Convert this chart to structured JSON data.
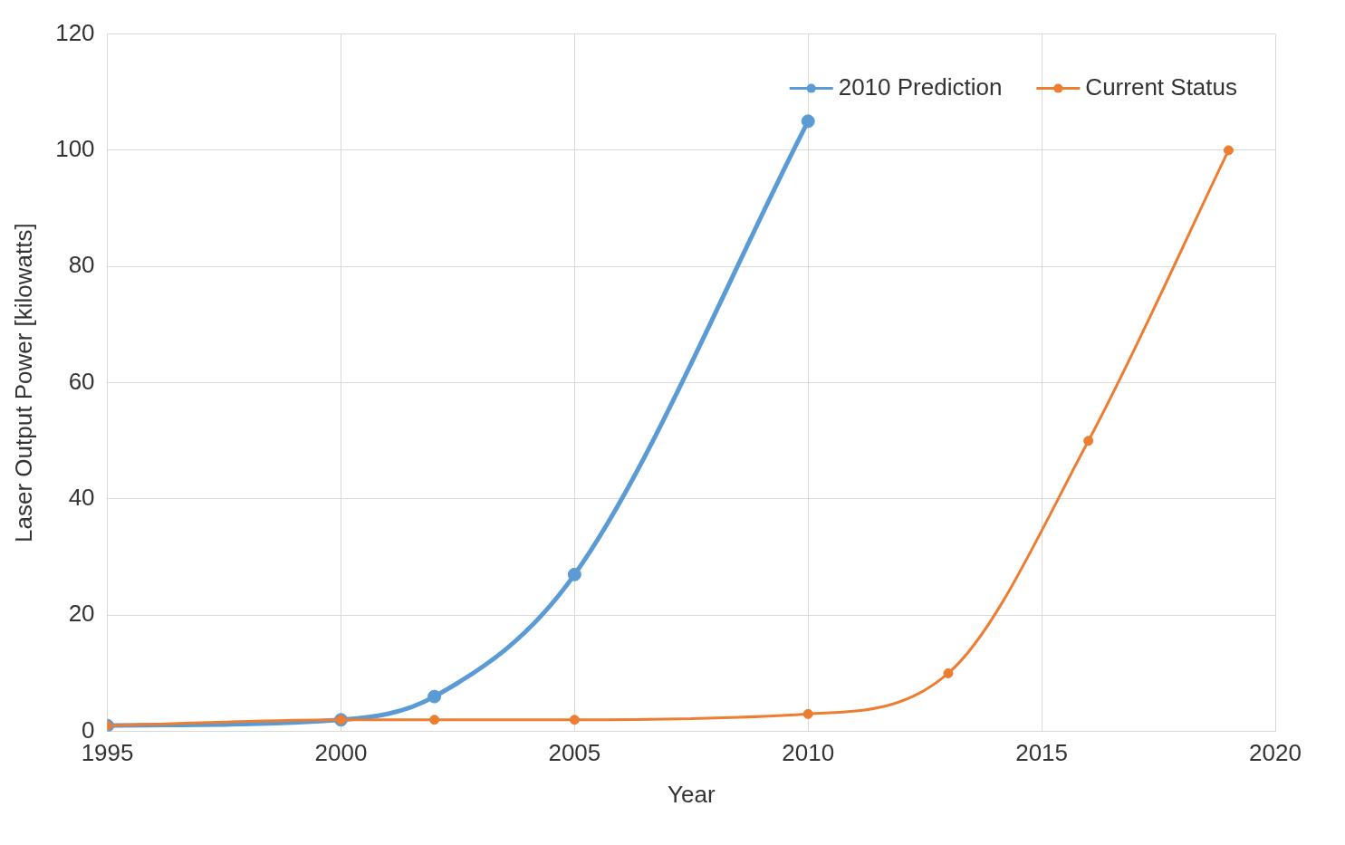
{
  "chart_data": {
    "type": "line",
    "xlabel": "Year",
    "ylabel": "Laser Output Power [kilowatts]",
    "series": [
      {
        "name": "2010 Prediction",
        "color": "#5b9bd5",
        "x": [
          1995,
          2000,
          2002,
          2005,
          2010
        ],
        "values": [
          1,
          2,
          6,
          27,
          105
        ]
      },
      {
        "name": "Current Status",
        "color": "#ed7d31",
        "x": [
          1995,
          2000,
          2002,
          2005,
          2010,
          2013,
          2016,
          2019
        ],
        "values": [
          1,
          2,
          2,
          2,
          3,
          10,
          50,
          100
        ]
      }
    ],
    "xlim": [
      1995,
      2020
    ],
    "xticks": [
      1995,
      2000,
      2005,
      2010,
      2015,
      2020
    ],
    "ylim": [
      0,
      120
    ],
    "yticks": [
      0,
      20,
      40,
      60,
      80,
      100,
      120
    ],
    "grid": true,
    "legend": "top right",
    "marker": "circle",
    "line_style": "solid"
  }
}
